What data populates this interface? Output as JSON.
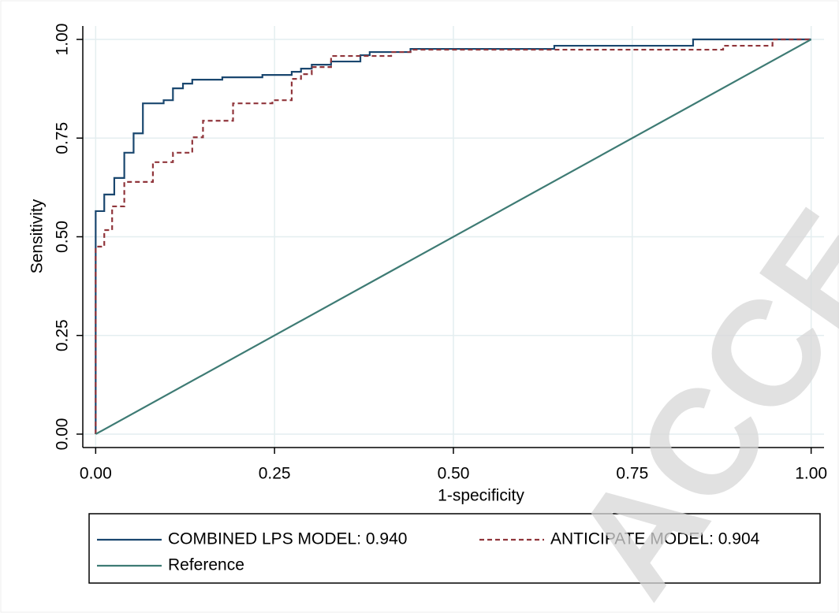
{
  "chart_data": {
    "type": "line",
    "xlabel": "1-specificity",
    "ylabel": "Sensitivity",
    "xlim": [
      -0.018,
      1.018
    ],
    "ylim": [
      -0.034,
      1.034
    ],
    "xticks": [
      {
        "value": 0,
        "label": "0.00"
      },
      {
        "value": 0.25,
        "label": "0.25"
      },
      {
        "value": 0.5,
        "label": "0.50"
      },
      {
        "value": 0.75,
        "label": "0.75"
      },
      {
        "value": 1,
        "label": "1.00"
      }
    ],
    "yticks": [
      {
        "value": 0,
        "label": "0.00"
      },
      {
        "value": 0.25,
        "label": "0.25"
      },
      {
        "value": 0.5,
        "label": "0.50"
      },
      {
        "value": 0.75,
        "label": "0.75"
      },
      {
        "value": 1,
        "label": "1.00"
      }
    ],
    "grid": true,
    "watermark": "ACCE",
    "series": [
      {
        "name": "COMBINED LPS MODEL: 0.940",
        "color": "#1a476f",
        "dash": false,
        "x": [
          0,
          0,
          0.012,
          0.012,
          0.026,
          0.026,
          0.04,
          0.04,
          0.053,
          0.053,
          0.066,
          0.066,
          0.095,
          0.095,
          0.108,
          0.108,
          0.122,
          0.122,
          0.135,
          0.135,
          0.177,
          0.177,
          0.233,
          0.233,
          0.274,
          0.274,
          0.287,
          0.287,
          0.302,
          0.302,
          0.329,
          0.329,
          0.37,
          0.37,
          0.383,
          0.383,
          0.44,
          0.44,
          0.641,
          0.641,
          0.835,
          0.835,
          1
        ],
        "values": [
          0,
          0.565,
          0.565,
          0.607,
          0.607,
          0.649,
          0.649,
          0.713,
          0.713,
          0.762,
          0.762,
          0.838,
          0.838,
          0.846,
          0.846,
          0.876,
          0.876,
          0.888,
          0.888,
          0.898,
          0.898,
          0.904,
          0.904,
          0.91,
          0.91,
          0.918,
          0.918,
          0.926,
          0.926,
          0.936,
          0.936,
          0.944,
          0.944,
          0.96,
          0.96,
          0.968,
          0.968,
          0.976,
          0.976,
          0.984,
          0.984,
          1,
          1
        ]
      },
      {
        "name": "ANTICIPATE MODEL: 0.904",
        "color": "#90353b",
        "dash": true,
        "x": [
          0,
          0,
          0.012,
          0.012,
          0.023,
          0.023,
          0.04,
          0.04,
          0.08,
          0.08,
          0.108,
          0.108,
          0.135,
          0.135,
          0.15,
          0.15,
          0.192,
          0.192,
          0.247,
          0.247,
          0.274,
          0.274,
          0.287,
          0.287,
          0.302,
          0.302,
          0.329,
          0.329,
          0.413,
          0.413,
          0.44,
          0.44,
          0.877,
          0.877,
          0.946,
          0.946,
          1
        ],
        "values": [
          0,
          0.475,
          0.475,
          0.517,
          0.517,
          0.577,
          0.577,
          0.639,
          0.639,
          0.689,
          0.689,
          0.713,
          0.713,
          0.752,
          0.752,
          0.794,
          0.794,
          0.838,
          0.838,
          0.846,
          0.846,
          0.9,
          0.9,
          0.912,
          0.912,
          0.93,
          0.93,
          0.958,
          0.958,
          0.968,
          0.968,
          0.974,
          0.974,
          0.984,
          0.984,
          1,
          1
        ]
      },
      {
        "name": "Reference",
        "color": "#3e7b74",
        "dash": false,
        "x": [
          0,
          1
        ],
        "values": [
          0,
          1
        ]
      }
    ]
  }
}
